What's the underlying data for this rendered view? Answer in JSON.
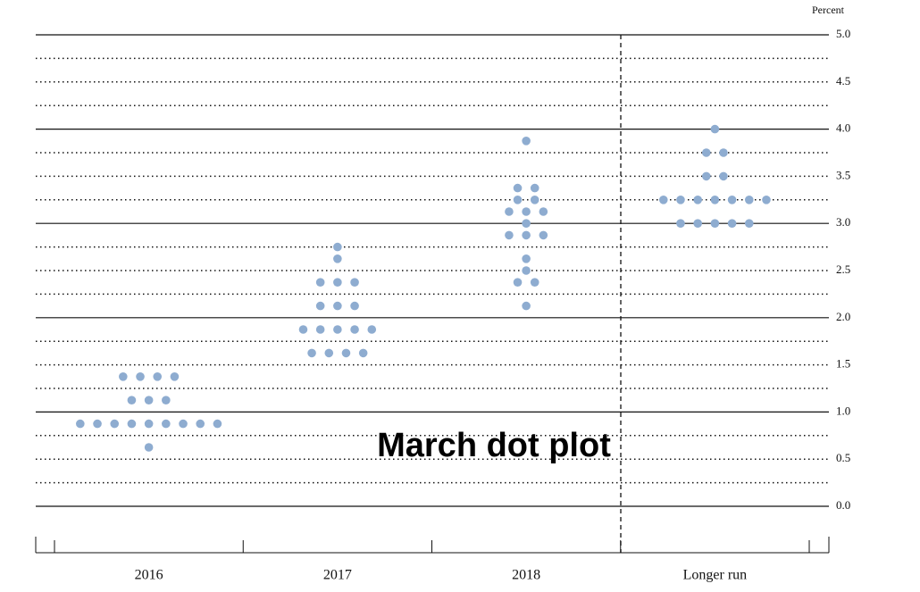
{
  "chart_data": {
    "type": "dot",
    "y_axis_label": "Percent",
    "annotation": "March dot plot",
    "categories": [
      "2016",
      "2017",
      "2018",
      "Longer run"
    ],
    "values": [
      [
        1.375,
        1.375,
        1.375,
        1.375,
        1.125,
        1.125,
        1.125,
        0.875,
        0.875,
        0.875,
        0.875,
        0.875,
        0.875,
        0.875,
        0.875,
        0.875,
        0.625
      ],
      [
        2.75,
        2.625,
        2.375,
        2.375,
        2.375,
        2.125,
        2.125,
        2.125,
        1.875,
        1.875,
        1.875,
        1.875,
        1.875,
        1.625,
        1.625,
        1.625,
        1.625
      ],
      [
        3.875,
        3.375,
        3.375,
        3.25,
        3.25,
        3.125,
        3.125,
        3.125,
        3.0,
        2.875,
        2.875,
        2.875,
        2.625,
        2.5,
        2.375,
        2.375,
        2.125
      ],
      [
        4.0,
        3.75,
        3.75,
        3.5,
        3.5,
        3.25,
        3.25,
        3.25,
        3.25,
        3.25,
        3.25,
        3.25,
        3.0,
        3.0,
        3.0,
        3.0,
        3.0
      ]
    ],
    "color": "#8eacd0",
    "ylim": [
      0,
      5
    ],
    "yticks": [
      {
        "value": 0,
        "label": "0.0"
      },
      {
        "value": 0.5,
        "label": "0.5"
      },
      {
        "value": 1,
        "label": "1.0"
      },
      {
        "value": 1.5,
        "label": "1.5"
      },
      {
        "value": 2,
        "label": "2.0"
      },
      {
        "value": 2.5,
        "label": "2.5"
      },
      {
        "value": 3,
        "label": "3.0"
      },
      {
        "value": 3.5,
        "label": "3.5"
      },
      {
        "value": 4,
        "label": "4.0"
      },
      {
        "value": 4.5,
        "label": "4.5"
      },
      {
        "value": 5,
        "label": "5.0"
      }
    ],
    "minor_yticks": [
      0.25,
      0.75,
      1.25,
      1.75,
      2.25,
      2.75,
      3.25,
      3.75,
      4.25,
      4.75
    ],
    "grid": true
  }
}
